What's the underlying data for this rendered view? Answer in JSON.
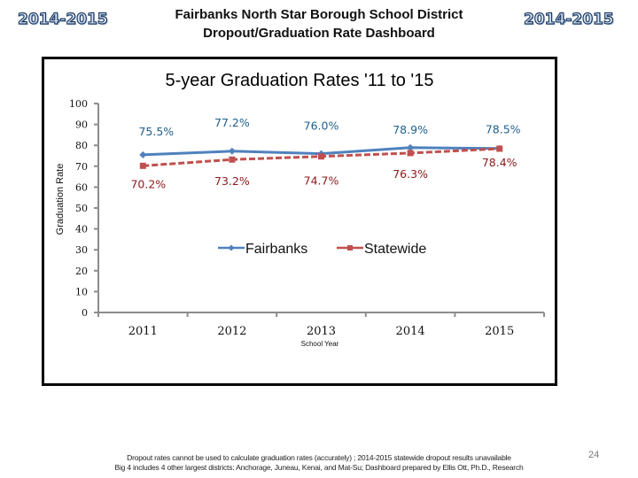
{
  "header": {
    "year_badge_left": "2014-2015",
    "year_badge_right": "2014-2015",
    "title_line1": "Fairbanks North Star Borough School District",
    "title_line2": "Dropout/Graduation Rate Dashboard"
  },
  "chart_data": {
    "type": "line",
    "title": "5-year Graduation Rates '11 to '15",
    "xlabel": "School Year",
    "ylabel": "Graduation Rate",
    "categories": [
      "2011",
      "2012",
      "2013",
      "2014",
      "2015"
    ],
    "ylim": [
      0,
      100
    ],
    "yticks": [
      0,
      10,
      20,
      30,
      40,
      50,
      60,
      70,
      80,
      90,
      100
    ],
    "grid": false,
    "legend_position": "inside-middle",
    "series": [
      {
        "name": "Fairbanks",
        "values": [
          75.5,
          77.2,
          76.0,
          78.9,
          78.5
        ],
        "labels": [
          "75.5%",
          "77.2%",
          "76.0%",
          "78.9%",
          "78.5%"
        ],
        "color": "#4f81bd",
        "label_color": "#1f5f8b",
        "line_style": "solid",
        "marker": "diamond"
      },
      {
        "name": "Statewide",
        "values": [
          70.2,
          73.2,
          74.7,
          76.3,
          78.4
        ],
        "labels": [
          "70.2%",
          "73.2%",
          "74.7%",
          "76.3%",
          "78.4%"
        ],
        "color": "#c0504d",
        "label_color": "#8b1a1a",
        "line_style": "dashed",
        "marker": "square"
      }
    ]
  },
  "footer": {
    "note_line1": "Dropout rates cannot be used to calculate graduation rates (accurately) ; 2014-2015 statewide dropout results unavailable",
    "note_line2": "Big 4 includes 4 other largest districts: Anchorage, Juneau, Kenai, and Mat-Su; Dashboard prepared by Ellis Ott, Ph.D., Research",
    "page_number": "24"
  }
}
